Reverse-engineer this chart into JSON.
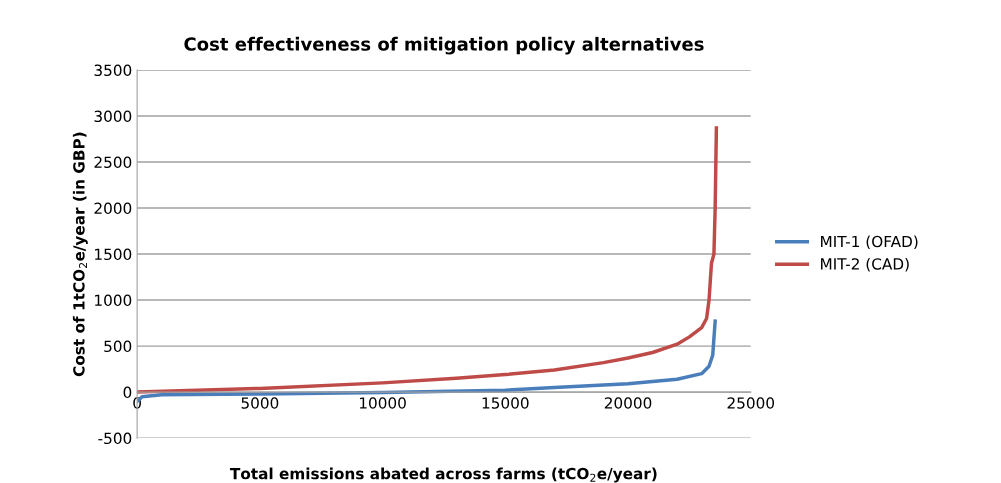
{
  "chart_data": {
    "type": "line",
    "title": "Cost effectiveness of mitigation policy alternatives",
    "xlabel": "Total emissions abated across farms (tCO$_{2}$e/year)",
    "ylabel": "Cost of 1tCO$_{2}$e/year (in GBP)",
    "xlim": [
      0,
      25000
    ],
    "xticks": [
      0,
      5000,
      10000,
      15000,
      20000,
      25000
    ],
    "ylim": [
      -500,
      3500
    ],
    "yticks": [
      -500,
      0,
      500,
      1000,
      1500,
      2000,
      2500,
      3000,
      3500
    ],
    "grid": "y",
    "legend": "right",
    "marker": "none",
    "line_style": "solid",
    "series": [
      {
        "name": "MIT-1 (OFAD)",
        "color": "#4a7ebb",
        "x": [
          0,
          200,
          1000,
          5000,
          10000,
          15000,
          17000,
          20000,
          22000,
          23000,
          23300,
          23450,
          23550
        ],
        "values": [
          -100,
          -50,
          -30,
          -20,
          -5,
          20,
          50,
          90,
          140,
          200,
          280,
          400,
          770
        ]
      },
      {
        "name": "MIT-2 (CAD)",
        "color": "#be4b48",
        "x": [
          0,
          5000,
          10000,
          13000,
          15000,
          17000,
          19000,
          20000,
          21000,
          22000,
          22500,
          23000,
          23200,
          23300,
          23400,
          23500,
          23550,
          23600
        ],
        "values": [
          0,
          40,
          100,
          150,
          190,
          240,
          320,
          370,
          430,
          520,
          600,
          700,
          800,
          1000,
          1400,
          1500,
          2000,
          2870
        ]
      }
    ]
  }
}
